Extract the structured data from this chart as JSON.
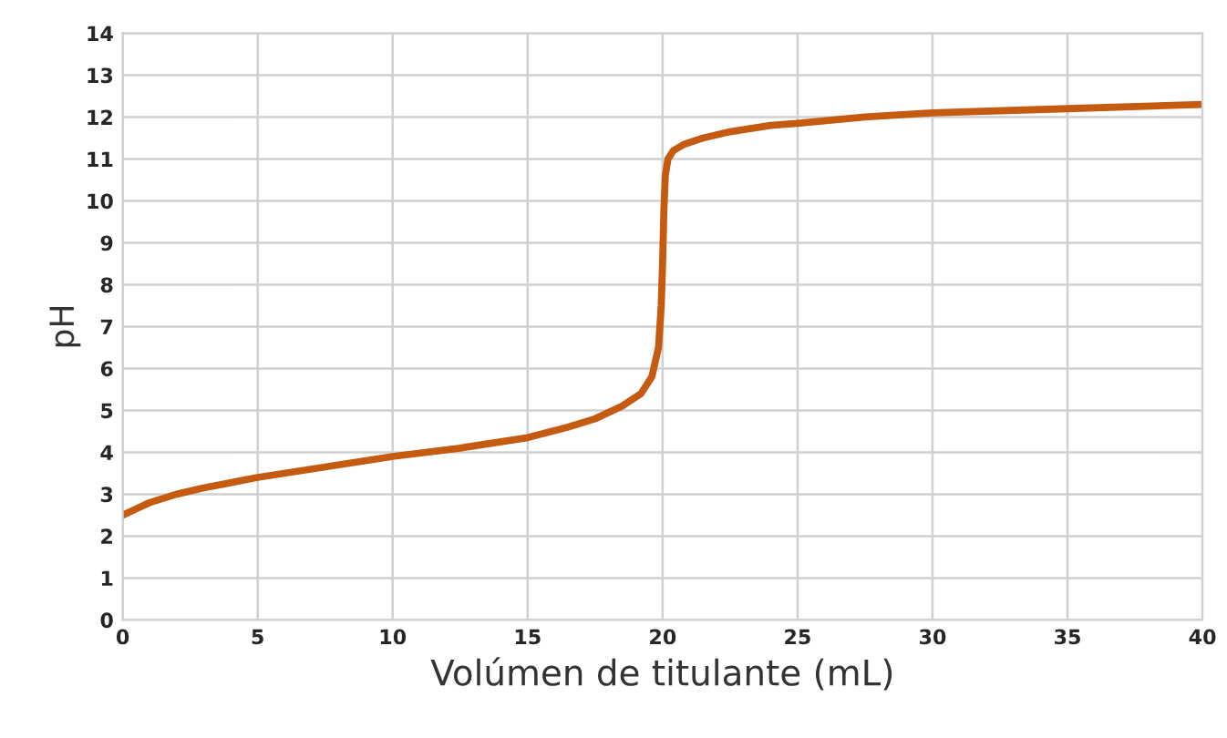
{
  "chart_data": {
    "type": "line",
    "xlabel": "Volúmen de titulante (mL)",
    "ylabel": "pH",
    "series": [
      {
        "color": "#c55a11",
        "x": [
          0,
          0.5,
          1,
          2,
          3,
          5,
          7.5,
          10,
          12.5,
          15,
          16.5,
          17.5,
          18.5,
          19.2,
          19.6,
          19.85,
          19.95,
          20,
          20.05,
          20.1,
          20.2,
          20.4,
          20.8,
          21.5,
          22.5,
          24,
          25,
          27.5,
          30,
          35,
          40
        ],
        "values": [
          2.5,
          2.65,
          2.8,
          3.0,
          3.15,
          3.4,
          3.65,
          3.9,
          4.1,
          4.35,
          4.6,
          4.8,
          5.1,
          5.4,
          5.8,
          6.5,
          7.5,
          8.5,
          9.8,
          10.6,
          11.0,
          11.2,
          11.35,
          11.5,
          11.65,
          11.8,
          11.85,
          12.0,
          12.1,
          12.2,
          12.3
        ]
      }
    ],
    "xlim": [
      0,
      40
    ],
    "xticks": [
      0,
      5,
      10,
      15,
      20,
      25,
      30,
      35,
      40
    ],
    "ylim": [
      0,
      14
    ],
    "yticks": [
      0,
      1,
      2,
      3,
      4,
      5,
      6,
      7,
      8,
      9,
      10,
      11,
      12,
      13,
      14
    ],
    "grid": true,
    "line_style": "solid"
  }
}
